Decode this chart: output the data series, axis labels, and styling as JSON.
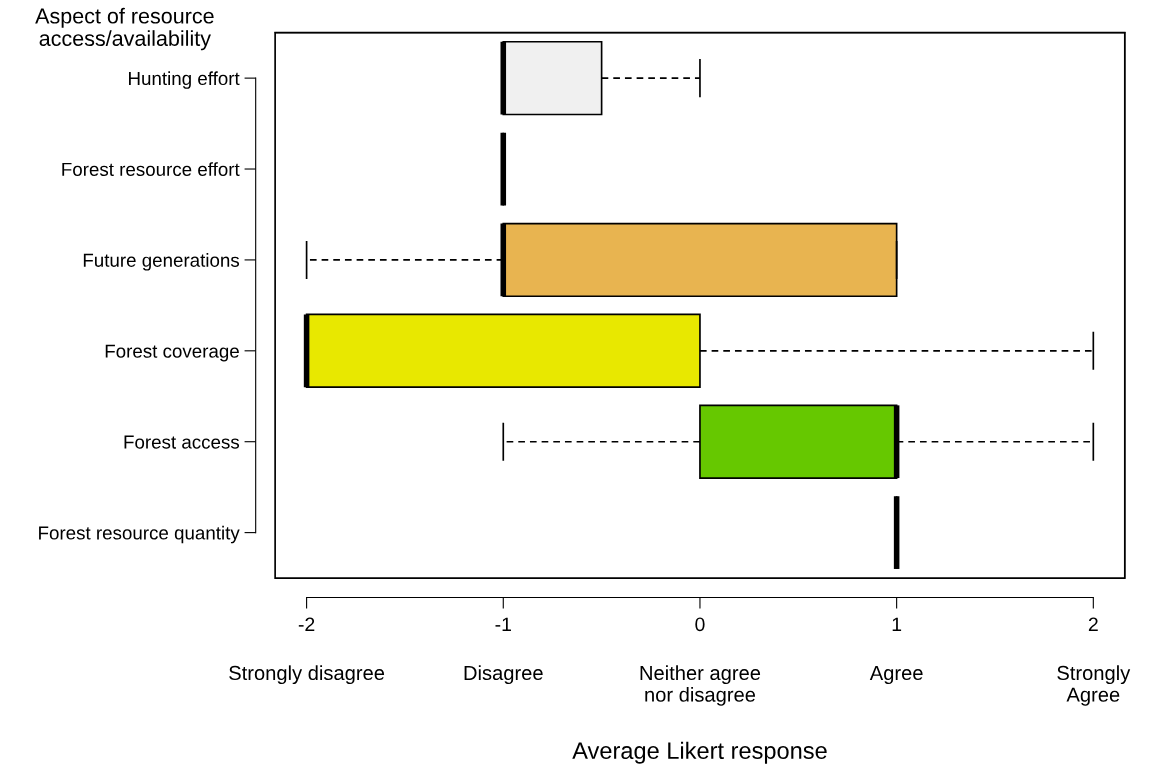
{
  "chart_data": {
    "type": "box",
    "orientation": "horizontal",
    "ylabel": "Aspect of resource access/availability",
    "xlabel": "Average Likert response",
    "categories": [
      "Hunting effort",
      "Forest resource effort",
      "Future generations",
      "Forest coverage",
      "Forest access",
      "Forest resource quantity"
    ],
    "boxes": [
      {
        "low": -1,
        "q1": -1,
        "median": -1,
        "q3": -0.5,
        "high": 0
      },
      {
        "low": -1,
        "q1": -1,
        "median": -1,
        "q3": -1,
        "high": -1
      },
      {
        "low": -2,
        "q1": -1,
        "median": -1,
        "q3": 1,
        "high": 1
      },
      {
        "low": -2,
        "q1": -2,
        "median": -2,
        "q3": 0,
        "high": 2
      },
      {
        "low": -1,
        "q1": 0,
        "median": 1,
        "q3": 1,
        "high": 2
      },
      {
        "low": 1,
        "q1": 1,
        "median": 1,
        "q3": 1,
        "high": 1
      }
    ],
    "colors": [
      "#f0f0f0",
      "#000000",
      "#e8b450",
      "#e8e800",
      "#66c800",
      "#000000"
    ],
    "xlim": [
      -2.16,
      2.16
    ],
    "xticks": [
      -2,
      -1,
      0,
      1,
      2
    ],
    "grid": false,
    "annotations": [
      "Strongly disagree",
      "Disagree",
      "Neither agree\nnor disagree",
      "Agree",
      "Strongly\nAgree"
    ]
  }
}
